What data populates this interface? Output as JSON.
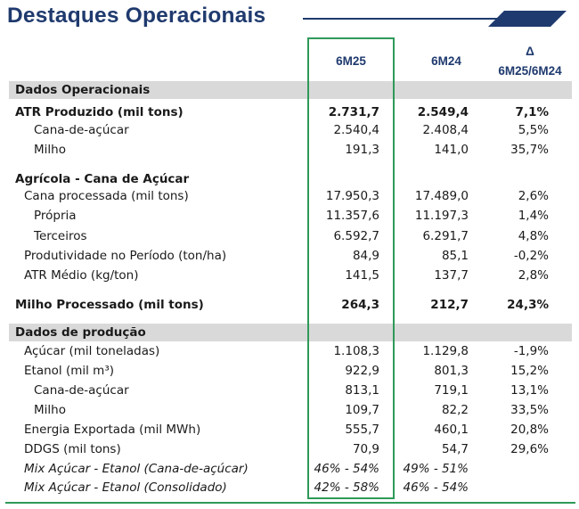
{
  "title": "Destaques Operacionais",
  "colors": {
    "title": "#1f3a6e",
    "highlight_border": "#2f9a59",
    "section_band": "#d9d9d9"
  },
  "columns": {
    "c1": "6M25",
    "c2": "6M24",
    "c3_line1": "Δ",
    "c3_line2": "6M25/6M24"
  },
  "rows": [
    {
      "label": "Dados Operacionais",
      "section": true
    },
    {
      "label": "ATR Produzido (mil tons)",
      "v1": "2.731,7",
      "v2": "2.549,4",
      "v3": "7,1%",
      "bold": true
    },
    {
      "label": "Cana-de-açúcar",
      "v1": "2.540,4",
      "v2": "2.408,4",
      "v3": "5,5%"
    },
    {
      "label": "Milho",
      "v1": "191,3",
      "v2": "141,0",
      "v3": "35,7%"
    },
    {
      "label": "Agrícola - Cana de Açúcar",
      "bold": true
    },
    {
      "label": "Cana processada (mil tons)",
      "v1": "17.950,3",
      "v2": "17.489,0",
      "v3": "2,6%"
    },
    {
      "label": "Própria",
      "v1": "11.357,6",
      "v2": "11.197,3",
      "v3": "1,4%"
    },
    {
      "label": "Terceiros",
      "v1": "6.592,7",
      "v2": "6.291,7",
      "v3": "4,8%"
    },
    {
      "label": "Produtividade no Período (ton/ha)",
      "v1": "84,9",
      "v2": "85,1",
      "v3": "-0,2%"
    },
    {
      "label": "ATR Médio (kg/ton)",
      "v1": "141,5",
      "v2": "137,7",
      "v3": "2,8%"
    },
    {
      "label": "Milho Processado (mil tons)",
      "v1": "264,3",
      "v2": "212,7",
      "v3": "24,3%",
      "bold": true
    },
    {
      "label": "Dados de produção",
      "section": true
    },
    {
      "label": "Açúcar (mil toneladas)",
      "v1": "1.108,3",
      "v2": "1.129,8",
      "v3": "-1,9%"
    },
    {
      "label": "Etanol (mil m³)",
      "v1": "922,9",
      "v2": "801,3",
      "v3": "15,2%"
    },
    {
      "label": "Cana-de-açúcar",
      "v1": "813,1",
      "v2": "719,1",
      "v3": "13,1%"
    },
    {
      "label": "Milho",
      "v1": "109,7",
      "v2": "82,2",
      "v3": "33,5%"
    },
    {
      "label": "Energia Exportada (mil MWh)",
      "v1": "555,7",
      "v2": "460,1",
      "v3": "20,8%"
    },
    {
      "label": "DDGS (mil tons)",
      "v1": "70,9",
      "v2": "54,7",
      "v3": "29,6%"
    },
    {
      "label": "Mix Açúcar - Etanol (Cana-de-açúcar)",
      "v1": "46% - 54%",
      "v2": "49% - 51%",
      "v3": "",
      "italic": true
    },
    {
      "label": "Mix Açúcar - Etanol (Consolidado)",
      "v1": "42% - 58%",
      "v2": "46% - 54%",
      "v3": "",
      "italic": true
    }
  ]
}
